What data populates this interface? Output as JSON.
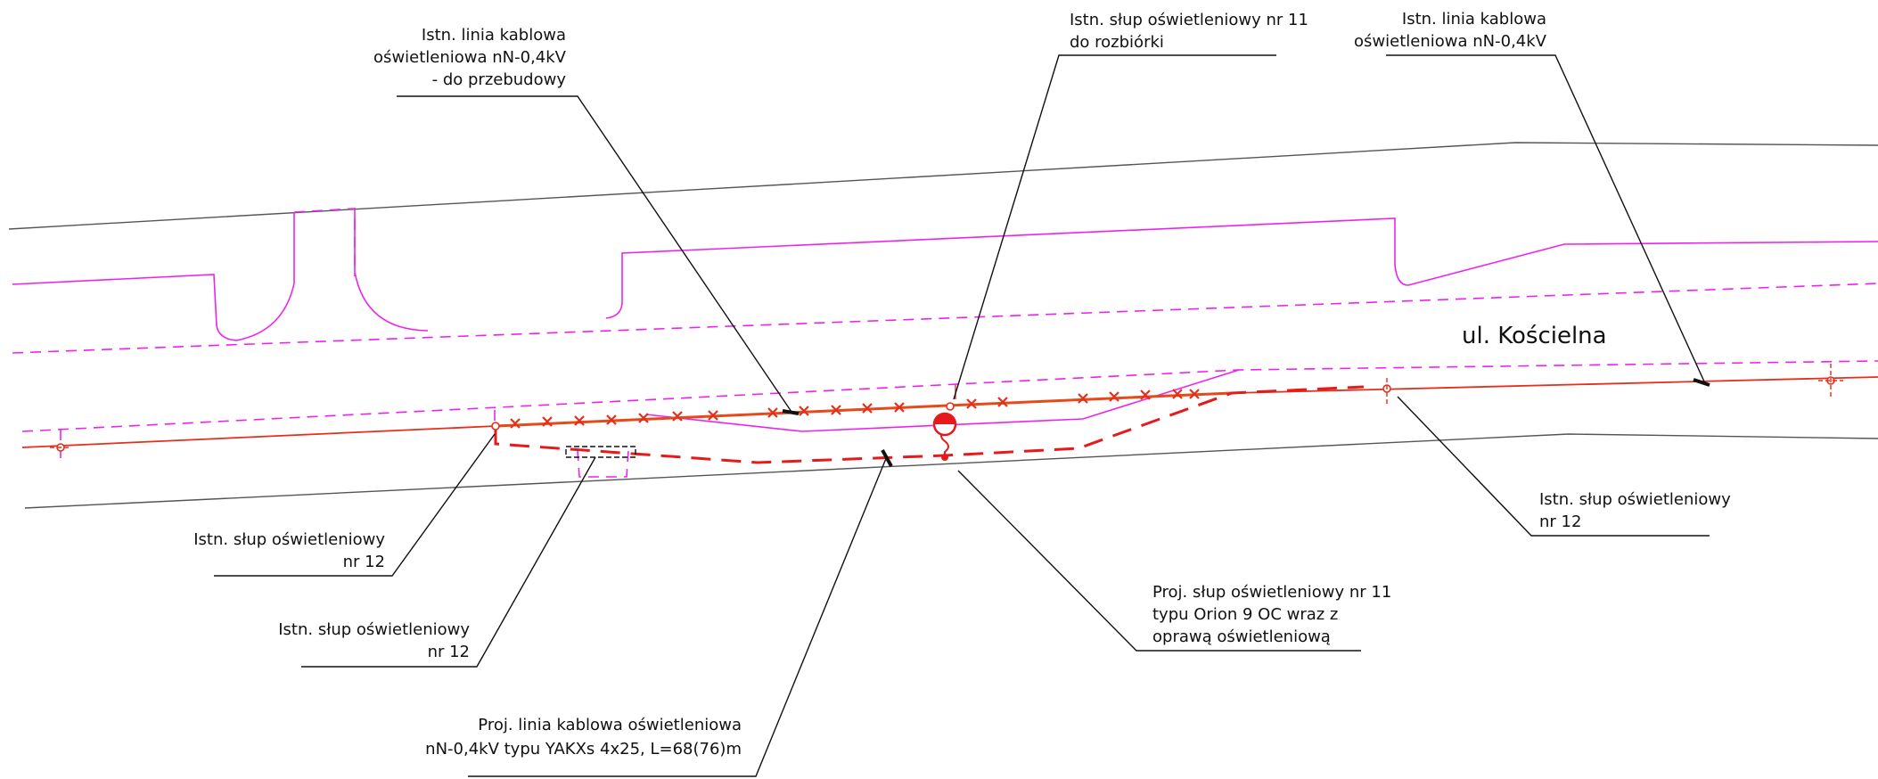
{
  "street_name": "ul. Kościelna",
  "labels": {
    "cable_rebuild": [
      "Istn. linia kablowa",
      "oświetleniowa nN-0,4kV",
      "- do przebudowy"
    ],
    "pole11_demolish": [
      "Istn. słup oświetleniowy nr 11",
      "do rozbiórki"
    ],
    "cable_existing": [
      "Istn. linia kablowa",
      "oświetleniowa nN-0,4kV"
    ],
    "pole12_left": [
      "Istn. słup oświetleniowy",
      "nr 12"
    ],
    "pole12_mid": [
      "Istn. słup oświetleniowy",
      "nr 12"
    ],
    "pole12_right": [
      "Istn. słup oświetleniowy",
      "nr 12"
    ],
    "new_cable": [
      "Proj. linia kablowa oświetleniowa",
      "nN-0,4kV typu YAKXs 4x25, L=68(76)m"
    ],
    "new_pole11": [
      "Proj. słup oświetleniowy nr 11",
      "typu Orion 9 OC wraz z",
      "oprawą oświetleniową"
    ]
  },
  "colors": {
    "kerb": "#ee22ee",
    "existing_cable": "#e62e1a",
    "new_cable": "#e61a1a",
    "text": "#111111"
  }
}
